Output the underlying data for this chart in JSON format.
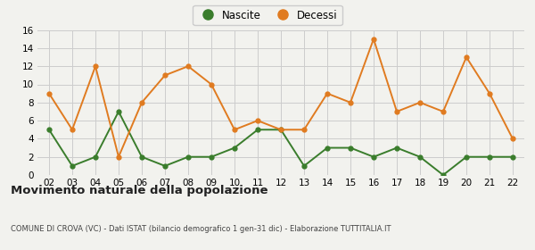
{
  "years": [
    "02",
    "03",
    "04",
    "05",
    "06",
    "07",
    "08",
    "09",
    "10",
    "11",
    "12",
    "13",
    "14",
    "15",
    "16",
    "17",
    "18",
    "19",
    "20",
    "21",
    "22"
  ],
  "nascite": [
    5,
    1,
    2,
    7,
    2,
    1,
    2,
    2,
    3,
    5,
    5,
    1,
    3,
    3,
    2,
    3,
    2,
    0,
    2,
    2,
    2
  ],
  "decessi": [
    9,
    5,
    12,
    2,
    8,
    11,
    12,
    10,
    5,
    6,
    5,
    5,
    9,
    8,
    15,
    7,
    8,
    7,
    13,
    9,
    4
  ],
  "nascite_color": "#3a7d2c",
  "decessi_color": "#e07b20",
  "title": "Movimento naturale della popolazione",
  "subtitle": "COMUNE DI CROVA (VC) - Dati ISTAT (bilancio demografico 1 gen-31 dic) - Elaborazione TUTTITALIA.IT",
  "legend_nascite": "Nascite",
  "legend_decessi": "Decessi",
  "ylim": [
    0,
    16
  ],
  "yticks": [
    0,
    2,
    4,
    6,
    8,
    10,
    12,
    14,
    16
  ],
  "bg_color": "#f2f2ee",
  "grid_color": "#cccccc"
}
